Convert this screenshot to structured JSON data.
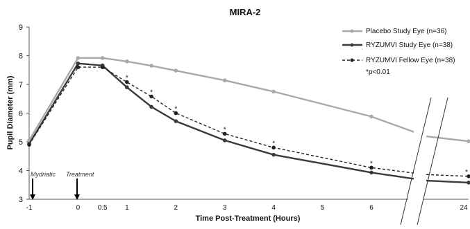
{
  "chart_data": {
    "type": "line",
    "title": "MIRA-2",
    "xlabel": "Time Post-Treatment (Hours)",
    "ylabel": "Pupil Diameter (mm)",
    "ylim": [
      3,
      9
    ],
    "yticks": [
      3,
      4,
      5,
      6,
      7,
      8,
      9
    ],
    "xticks": [
      -1,
      0,
      0.5,
      1,
      2,
      3,
      4,
      5,
      6,
      24
    ],
    "axis_break": "between 6 and 24",
    "grid": false,
    "legend": "top-right",
    "note": "*p<0.01",
    "annotations": [
      {
        "text": "Mydriatic",
        "x": -1
      },
      {
        "text": "Treatment",
        "x": 0
      }
    ],
    "series": [
      {
        "name": "Placebo Study Eye (n=36)",
        "color": "#a9a9a9",
        "style": "solid",
        "x": [
          -1,
          0,
          0.5,
          1,
          1.5,
          2,
          3,
          4,
          6,
          24
        ],
        "y": [
          5.05,
          7.92,
          7.92,
          7.8,
          7.65,
          7.48,
          7.14,
          6.75,
          5.88,
          5.02
        ]
      },
      {
        "name": "RYZUMVI Study Eye (n=38)",
        "color": "#3a3a3a",
        "style": "solid",
        "x": [
          -1,
          0,
          0.5,
          1,
          1.5,
          2,
          3,
          4,
          6,
          24
        ],
        "y": [
          4.93,
          7.73,
          7.66,
          6.9,
          6.22,
          5.72,
          5.05,
          4.55,
          3.93,
          3.58
        ]
      },
      {
        "name": "RYZUMVI Fellow Eye (n=38)",
        "color": "#222222",
        "style": "dashed",
        "x": [
          -1,
          0,
          0.5,
          1,
          1.5,
          2,
          3,
          4,
          6,
          24
        ],
        "y": [
          4.9,
          7.6,
          7.6,
          7.08,
          6.58,
          6.0,
          5.28,
          4.8,
          4.1,
          3.8
        ]
      }
    ],
    "significance_markers": [
      {
        "x": 1,
        "text": "*"
      },
      {
        "x": 1.5,
        "text": "*"
      },
      {
        "x": 2,
        "text": "*"
      },
      {
        "x": 3,
        "text": "*"
      },
      {
        "x": 4,
        "text": "*"
      },
      {
        "x": 6,
        "text": "*"
      },
      {
        "x": 24,
        "text": "*"
      }
    ]
  }
}
